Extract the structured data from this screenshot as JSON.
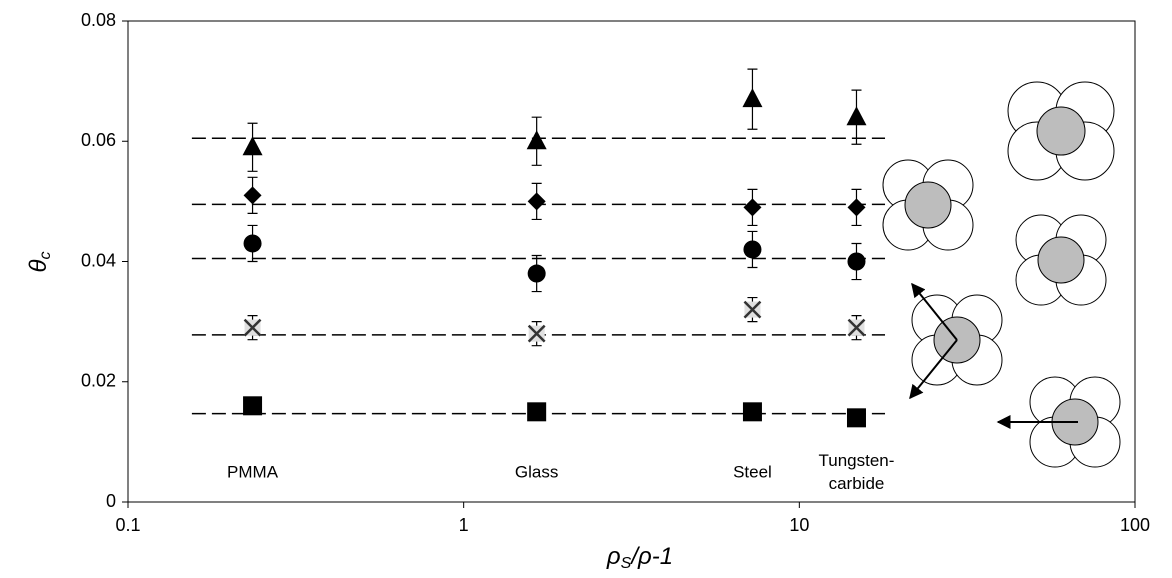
{
  "chart_data": {
    "type": "scatter",
    "x_scale": "log",
    "xlim": [
      0.1,
      100
    ],
    "xticks": [
      0.1,
      1,
      10,
      100
    ],
    "ylim": [
      0,
      0.08
    ],
    "yticks": [
      0,
      0.02,
      0.04,
      0.06,
      0.08
    ],
    "grid": false,
    "x_label": {
      "main": "ρ",
      "sub": "S",
      "rest": "/ρ-1"
    },
    "y_label": {
      "main": "θ",
      "sub": "c"
    },
    "x": [
      0.235,
      1.65,
      7.25,
      14.8
    ],
    "category_labels": [
      [
        "PMMA"
      ],
      [
        "Glass"
      ],
      [
        "Steel"
      ],
      [
        "Tungsten-",
        "carbide"
      ]
    ],
    "series": [
      {
        "marker": "triangle",
        "color": "#000000",
        "values": [
          0.059,
          0.06,
          0.067,
          0.064
        ],
        "errors": [
          0.004,
          0.004,
          0.005,
          0.0045
        ]
      },
      {
        "marker": "star",
        "color": "#000000",
        "values": [
          0.051,
          0.05,
          0.049,
          0.049
        ],
        "errors": [
          0.003,
          0.003,
          0.003,
          0.003
        ]
      },
      {
        "marker": "circle",
        "color": "#000000",
        "values": [
          0.043,
          0.038,
          0.042,
          0.04
        ],
        "errors": [
          0.003,
          0.003,
          0.003,
          0.003
        ]
      },
      {
        "marker": "cross",
        "color": "#333333",
        "values": [
          0.029,
          0.028,
          0.032,
          0.029
        ],
        "errors": [
          0.002,
          0.002,
          0.002,
          0.002
        ]
      },
      {
        "marker": "square",
        "color": "#000000",
        "values": [
          0.016,
          0.015,
          0.015,
          0.014
        ]
      }
    ],
    "reference_lines": {
      "values": [
        0.0605,
        0.0495,
        0.0405,
        0.0278,
        0.0147
      ],
      "xrange": [
        0.155,
        18
      ]
    }
  }
}
